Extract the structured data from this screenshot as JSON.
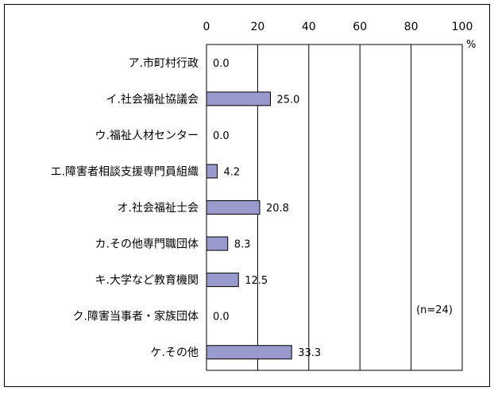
{
  "chart_data": {
    "type": "bar",
    "orientation": "horizontal",
    "categories": [
      "ア.市町村行政",
      "イ.社会福祉協議会",
      "ウ.福祉人材センター",
      "エ.障害者相談支援専門員組織",
      "オ.社会福祉士会",
      "カ.その他専門職団体",
      "キ.大学など教育機関",
      "ク.障害当事者・家族団体",
      "ケ.その他"
    ],
    "values": [
      0.0,
      25.0,
      0.0,
      4.2,
      20.8,
      8.3,
      12.5,
      0.0,
      33.3
    ],
    "value_labels": [
      "0.0",
      "25.0",
      "0.0",
      "4.2",
      "20.8",
      "8.3",
      "12.5",
      "0.0",
      "33.3"
    ],
    "xlim": [
      0,
      100
    ],
    "x_ticks": [
      "0",
      "20",
      "40",
      "60",
      "80",
      "100"
    ],
    "x_tick_values": [
      0,
      20,
      40,
      60,
      80,
      100
    ],
    "unit": "%",
    "note": "(n=24)",
    "bar_color": "#9999CC",
    "grid": true
  }
}
